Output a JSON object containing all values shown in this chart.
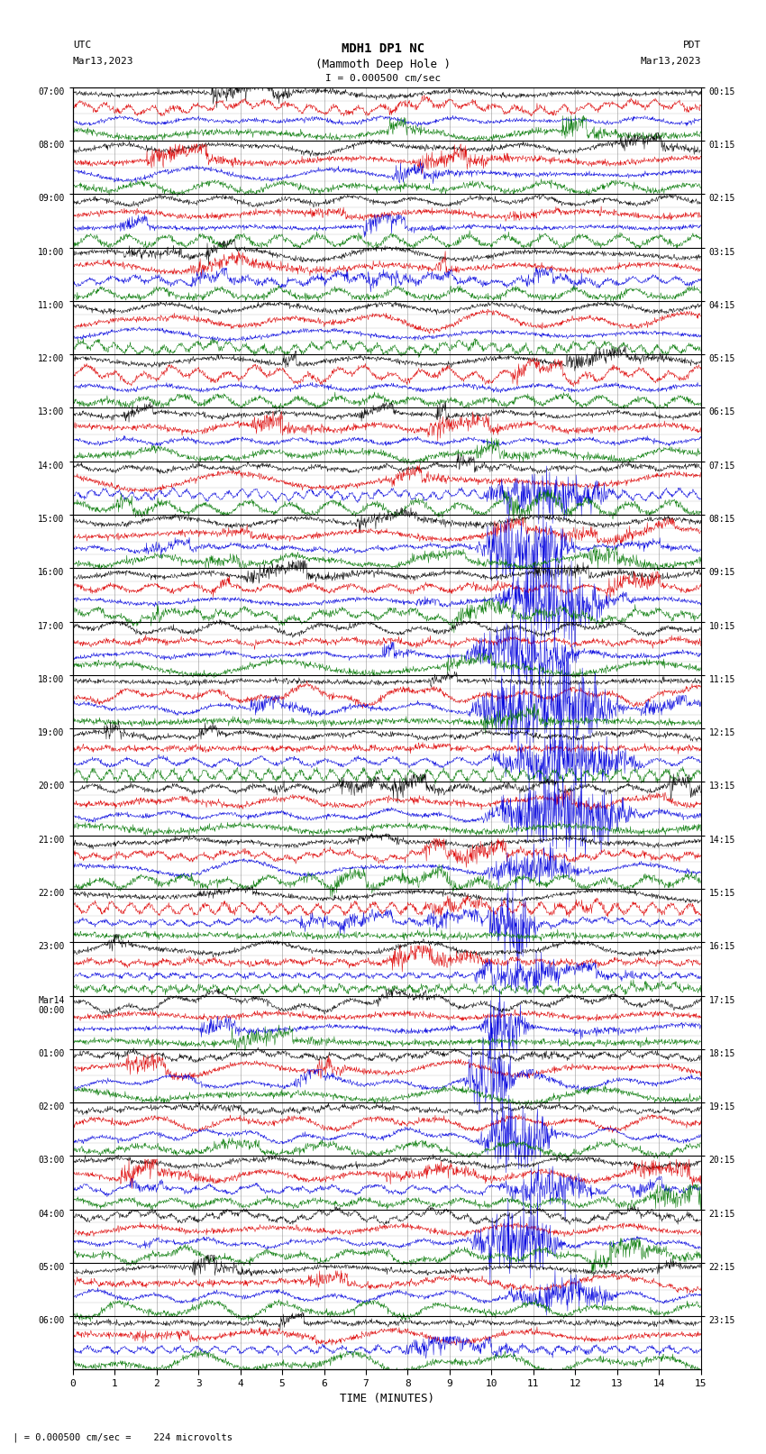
{
  "title_line1": "MDH1 DP1 NC",
  "title_line2": "(Mammoth Deep Hole )",
  "scale_text": "I = 0.000500 cm/sec",
  "left_label_top": "UTC",
  "left_label_date": "Mar13,2023",
  "right_label_top": "PDT",
  "right_label_date": "Mar13,2023",
  "bottom_xlabel": "TIME (MINUTES)",
  "bottom_note": " | = 0.000500 cm/sec =    224 microvolts",
  "utc_times": [
    "07:00",
    "08:00",
    "09:00",
    "10:00",
    "11:00",
    "12:00",
    "13:00",
    "14:00",
    "15:00",
    "16:00",
    "17:00",
    "18:00",
    "19:00",
    "20:00",
    "21:00",
    "22:00",
    "23:00",
    "Mar14\n00:00",
    "01:00",
    "02:00",
    "03:00",
    "04:00",
    "05:00",
    "06:00"
  ],
  "pdt_times": [
    "00:15",
    "01:15",
    "02:15",
    "03:15",
    "04:15",
    "05:15",
    "06:15",
    "07:15",
    "08:15",
    "09:15",
    "10:15",
    "11:15",
    "12:15",
    "13:15",
    "14:15",
    "15:15",
    "16:15",
    "17:15",
    "18:15",
    "19:15",
    "20:15",
    "21:15",
    "22:15",
    "23:15"
  ],
  "colors": {
    "black": "#000000",
    "red": "#dd0000",
    "blue": "#0000dd",
    "green": "#007700",
    "bg": "#ffffff",
    "grid": "#888888"
  },
  "n_rows": 24,
  "n_minutes": 15,
  "n_channels": 4,
  "fig_width": 8.5,
  "fig_height": 16.13,
  "dpi": 100,
  "channel_colors_order": [
    "black",
    "red",
    "blue",
    "green"
  ]
}
